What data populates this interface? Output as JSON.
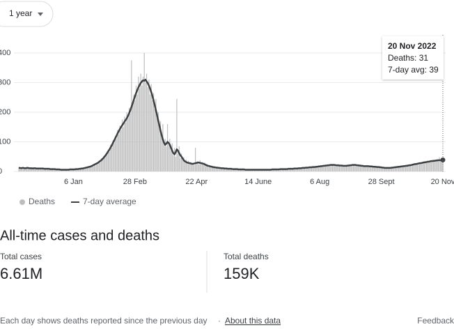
{
  "range_selector": "1 year",
  "chart_data": {
    "type": "bar",
    "categories": [
      null,
      null,
      null,
      null,
      null,
      null,
      null,
      null,
      null,
      null,
      null,
      null,
      null,
      null,
      null,
      null,
      null,
      null,
      null,
      null,
      null,
      null,
      null,
      null,
      null,
      null,
      null,
      null,
      null,
      null,
      null,
      null,
      null,
      null,
      null,
      null,
      null,
      null,
      null,
      null,
      null,
      null,
      null,
      null,
      null,
      null,
      null,
      "6 Jan",
      null,
      null,
      null,
      null,
      null,
      null,
      null,
      null,
      null,
      null,
      null,
      null,
      null,
      null,
      null,
      null,
      null,
      null,
      null,
      null,
      null,
      null,
      null,
      null,
      null,
      null,
      null,
      null,
      null,
      null,
      null,
      null,
      null,
      null,
      null,
      null,
      null,
      null,
      null,
      null,
      null,
      null,
      null,
      null,
      null,
      null,
      null,
      null,
      null,
      null,
      null,
      null,
      "28 Feb",
      null,
      null,
      null,
      null,
      null,
      null,
      null,
      null,
      null,
      null,
      null,
      null,
      null,
      null,
      null,
      null,
      null,
      null,
      null,
      null,
      null,
      null,
      null,
      null,
      null,
      null,
      null,
      null,
      null,
      null,
      null,
      null,
      null,
      null,
      null,
      null,
      null,
      null,
      null,
      null,
      null,
      null,
      null,
      null,
      null,
      null,
      null,
      null,
      null,
      null,
      null,
      null,
      "22 Apr",
      null,
      null,
      null,
      null,
      null,
      null,
      null,
      null,
      null,
      null,
      null,
      null,
      null,
      null,
      null,
      null,
      null,
      null,
      null,
      null,
      null,
      null,
      null,
      null,
      null,
      null,
      null,
      null,
      null,
      null,
      null,
      null,
      null,
      null,
      null,
      null,
      null,
      null,
      null,
      null,
      null,
      null,
      null,
      null,
      null,
      null,
      null,
      null,
      null,
      null,
      null,
      null,
      "14 June",
      null,
      null,
      null,
      null,
      null,
      null,
      null,
      null,
      null,
      null,
      null,
      null,
      null,
      null,
      null,
      null,
      null,
      null,
      null,
      null,
      null,
      null,
      null,
      null,
      null,
      null,
      null,
      null,
      null,
      null,
      null,
      null,
      null,
      null,
      null,
      null,
      null,
      null,
      null,
      null,
      null,
      null,
      null,
      null,
      null,
      null,
      null,
      null,
      null,
      null,
      null,
      null,
      "6 Aug",
      null,
      null,
      null,
      null,
      null,
      null,
      null,
      null,
      null,
      null,
      null,
      null,
      null,
      null,
      null,
      null,
      null,
      null,
      null,
      null,
      null,
      null,
      null,
      null,
      null,
      null,
      null,
      null,
      null,
      null,
      null,
      null,
      null,
      null,
      null,
      null,
      null,
      null,
      null,
      null,
      null,
      null,
      null,
      null,
      null,
      null,
      null,
      null,
      null,
      null,
      null,
      null,
      "28 Sept",
      null,
      null,
      null,
      null,
      null,
      null,
      null,
      null,
      null,
      null,
      null,
      null,
      null,
      null,
      null,
      null,
      null,
      null,
      null,
      null,
      null,
      null,
      null,
      null,
      null,
      null,
      null,
      null,
      null,
      null,
      null,
      null,
      null,
      null,
      null,
      null,
      null,
      null,
      null,
      null,
      null,
      null,
      null,
      null,
      null,
      null,
      null,
      null,
      null,
      null,
      null,
      null,
      "20 Nov"
    ],
    "series": [
      {
        "name": "Deaths",
        "type": "bar",
        "color": "#bdbdbd",
        "values": [
          14,
          10,
          12,
          15,
          9,
          13,
          11,
          16,
          10,
          12,
          12,
          9,
          11,
          13,
          8,
          10,
          12,
          9,
          11,
          10,
          11,
          8,
          10,
          9,
          7,
          10,
          9,
          8,
          7,
          9,
          9,
          6,
          8,
          7,
          6,
          8,
          5,
          7,
          6,
          5,
          7,
          5,
          6,
          8,
          6,
          7,
          9,
          6,
          8,
          9,
          7,
          10,
          8,
          11,
          9,
          12,
          10,
          14,
          12,
          16,
          13,
          18,
          15,
          22,
          18,
          26,
          20,
          30,
          25,
          36,
          30,
          44,
          38,
          52,
          45,
          60,
          55,
          72,
          66,
          90,
          80,
          105,
          95,
          120,
          110,
          140,
          125,
          155,
          140,
          175,
          150,
          185,
          165,
          200,
          180,
          215,
          195,
          375,
          225,
          260,
          240,
          290,
          260,
          320,
          280,
          330,
          290,
          320,
          400,
          300,
          330,
          285,
          310,
          260,
          295,
          240,
          265,
          210,
          245,
          180,
          200,
          150,
          170,
          125,
          160,
          95,
          110,
          85,
          160,
          90,
          110,
          70,
          95,
          55,
          80,
          50,
          245,
          60,
          85,
          45,
          60,
          40,
          48,
          30,
          40,
          28,
          36,
          25,
          32,
          24,
          28,
          22,
          80,
          26,
          35,
          24,
          38,
          25,
          32,
          22,
          30,
          18,
          26,
          15,
          22,
          14,
          20,
          12,
          18,
          11,
          16,
          10,
          15,
          9,
          14,
          9,
          13,
          8,
          12,
          8,
          11,
          7,
          10,
          8,
          9,
          6,
          10,
          7,
          9,
          6,
          8,
          6,
          9,
          5,
          8,
          5,
          7,
          6,
          7,
          5,
          7,
          5,
          7,
          6,
          6,
          5,
          7,
          5,
          7,
          6,
          6,
          5,
          7,
          6,
          6,
          5,
          7,
          6,
          8,
          6,
          8,
          6,
          8,
          7,
          8,
          7,
          9,
          7,
          9,
          8,
          9,
          7,
          10,
          8,
          10,
          8,
          11,
          9,
          11,
          9,
          12,
          9,
          13,
          10,
          13,
          11,
          14,
          11,
          15,
          12,
          16,
          12,
          17,
          13,
          17,
          14,
          18,
          14,
          19,
          15,
          20,
          16,
          21,
          17,
          22,
          18,
          23,
          19,
          24,
          20,
          25,
          20,
          24,
          19,
          23,
          19,
          22,
          18,
          22,
          17,
          21,
          17,
          21,
          18,
          22,
          19,
          23,
          20,
          24,
          20,
          24,
          19,
          23,
          18,
          22,
          17,
          21,
          16,
          20,
          16,
          20,
          16,
          19,
          15,
          19,
          14,
          18,
          14,
          17,
          13,
          17,
          12,
          16,
          11,
          15,
          10,
          14,
          10,
          14,
          11,
          14,
          11,
          15,
          12,
          16,
          13,
          17,
          14,
          18,
          15,
          19,
          16,
          20,
          17,
          21,
          18,
          23,
          19,
          24,
          21,
          27,
          22,
          28,
          23,
          30,
          25,
          31,
          26,
          33,
          28,
          35,
          29,
          36,
          30,
          38,
          31,
          39,
          33,
          40,
          34,
          42,
          35,
          48,
          36,
          45,
          31
        ]
      },
      {
        "name": "7-day average",
        "type": "line",
        "color": "#3c4043",
        "values": [
          12,
          12,
          11,
          12,
          12,
          11,
          11,
          12,
          12,
          11,
          11,
          11,
          10,
          11,
          11,
          10,
          10,
          10,
          10,
          10,
          10,
          10,
          9,
          9,
          9,
          9,
          9,
          8,
          8,
          8,
          8,
          8,
          7,
          7,
          7,
          7,
          6,
          6,
          6,
          6,
          6,
          6,
          6,
          6,
          7,
          7,
          7,
          7,
          7,
          8,
          8,
          8,
          9,
          9,
          10,
          10,
          11,
          12,
          13,
          14,
          15,
          16,
          17,
          19,
          21,
          23,
          25,
          27,
          29,
          32,
          35,
          38,
          42,
          46,
          51,
          56,
          62,
          68,
          74,
          81,
          88,
          96,
          104,
          112,
          120,
          128,
          136,
          143,
          150,
          156,
          162,
          168,
          174,
          180,
          188,
          197,
          207,
          218,
          230,
          242,
          254,
          265,
          275,
          284,
          292,
          299,
          304,
          308,
          306,
          310,
          304,
          298,
          290,
          280,
          268,
          255,
          240,
          224,
          207,
          190,
          172,
          155,
          138,
          122,
          108,
          97,
          90,
          94,
          100,
          96,
          90,
          80,
          70,
          62,
          58,
          65,
          75,
          70,
          62,
          55,
          50,
          44,
          38,
          34,
          32,
          30,
          29,
          28,
          27,
          26,
          26,
          27,
          28,
          29,
          30,
          30,
          29,
          28,
          27,
          26,
          24,
          22,
          20,
          19,
          18,
          17,
          16,
          15,
          14,
          14,
          13,
          13,
          12,
          12,
          11,
          11,
          11,
          10,
          10,
          10,
          9,
          9,
          9,
          9,
          8,
          8,
          8,
          8,
          8,
          7,
          7,
          7,
          7,
          7,
          7,
          6,
          6,
          6,
          6,
          6,
          6,
          6,
          6,
          6,
          6,
          6,
          6,
          6,
          6,
          6,
          6,
          6,
          6,
          6,
          6,
          6,
          6,
          6,
          7,
          7,
          7,
          7,
          7,
          7,
          7,
          8,
          8,
          8,
          8,
          8,
          8,
          8,
          9,
          9,
          9,
          9,
          9,
          10,
          10,
          10,
          10,
          11,
          11,
          11,
          12,
          12,
          12,
          13,
          13,
          13,
          14,
          14,
          14,
          15,
          15,
          15,
          16,
          16,
          17,
          17,
          18,
          18,
          19,
          19,
          20,
          20,
          21,
          21,
          22,
          22,
          22,
          22,
          22,
          21,
          21,
          21,
          20,
          20,
          20,
          19,
          19,
          19,
          19,
          20,
          20,
          21,
          21,
          22,
          22,
          22,
          22,
          21,
          21,
          20,
          20,
          19,
          19,
          18,
          18,
          18,
          18,
          18,
          17,
          17,
          17,
          16,
          16,
          16,
          15,
          15,
          15,
          14,
          14,
          13,
          13,
          12,
          12,
          12,
          12,
          12,
          12,
          13,
          13,
          14,
          14,
          15,
          15,
          16,
          16,
          17,
          17,
          18,
          18,
          19,
          19,
          20,
          21,
          21,
          22,
          23,
          24,
          25,
          25,
          26,
          27,
          28,
          28,
          29,
          30,
          31,
          31,
          32,
          33,
          33,
          34,
          35,
          35,
          36,
          36,
          37,
          37,
          38,
          38,
          38,
          39,
          39
        ]
      }
    ],
    "ylim": [
      0,
      400
    ],
    "yticks": [
      0,
      100,
      200,
      300,
      400
    ],
    "grid": true,
    "tooltip": {
      "title": "20 Nov 2022",
      "lines": [
        "Deaths: 31",
        "7-day avg: 39"
      ]
    }
  },
  "summary": {
    "title": "All-time cases and deaths",
    "stats": [
      {
        "label": "Total cases",
        "value": "6.61M"
      },
      {
        "label": "Total deaths",
        "value": "159K"
      }
    ]
  },
  "footer": {
    "note": "Each day shows deaths reported since the previous day",
    "separator": "·",
    "link": "About this data",
    "feedback": "Feedback"
  }
}
